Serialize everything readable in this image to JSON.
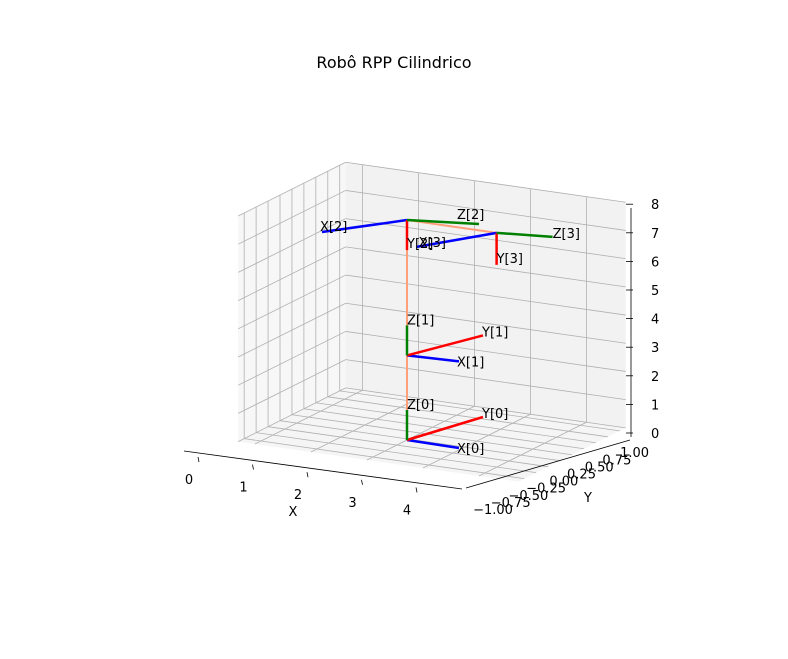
{
  "chart_data": {
    "type": "line3d",
    "title": "Robô RPP Cilindrico",
    "xlabel": "X",
    "ylabel": "Y",
    "zlabel": "",
    "xlim": [
      -0.3,
      4.7
    ],
    "ylim": [
      -1.0,
      1.0
    ],
    "zlim": [
      0,
      8
    ],
    "x_ticks": [
      "0",
      "1",
      "2",
      "3",
      "4"
    ],
    "y_ticks": [
      "−1.00",
      "−0.75",
      "−0.50",
      "−0.25",
      "0.00",
      "0.25",
      "0.50",
      "0.75",
      "1.00"
    ],
    "z_ticks": [
      "0",
      "1",
      "2",
      "3",
      "4",
      "5",
      "6",
      "7",
      "8"
    ],
    "grid": true,
    "colors": {
      "x_axis": "#0000ff",
      "y_axis": "#ff0000",
      "z_axis": "#008000",
      "link": "#ffa07a",
      "grid": "#b0b0b0",
      "pane": "#f2f2f2"
    },
    "links": [
      {
        "from": [
          2,
          0,
          0
        ],
        "to": [
          2,
          0,
          3
        ]
      },
      {
        "from": [
          2,
          0,
          3
        ],
        "to": [
          2,
          0,
          7.8
        ]
      },
      {
        "from": [
          2,
          0,
          7.8
        ],
        "to": [
          2,
          0,
          7.8
        ]
      },
      {
        "from": [
          2,
          0,
          7.8
        ],
        "to": [
          3.6,
          0,
          7.8
        ]
      }
    ],
    "frames": [
      {
        "label": "0",
        "origin": [
          2,
          0,
          0
        ]
      },
      {
        "label": "1",
        "origin": [
          2,
          0,
          3
        ]
      },
      {
        "label": "2",
        "origin": [
          2,
          0,
          7.8
        ]
      },
      {
        "label": "3",
        "origin": [
          3.6,
          0,
          7.8
        ]
      }
    ],
    "axis_labels": [
      {
        "frame": "0",
        "x": "X[0]",
        "y": "Y[0]",
        "z": "Z[0]"
      },
      {
        "frame": "1",
        "x": "X[1]",
        "y": "Y[1]",
        "z": "Z[1]"
      },
      {
        "frame": "2",
        "x": "X[2]",
        "y": "Y[2]",
        "z": "Z[2]"
      },
      {
        "frame": "3",
        "x": "X[3]",
        "y": "Y[3]",
        "z": "Z[3]"
      }
    ]
  }
}
